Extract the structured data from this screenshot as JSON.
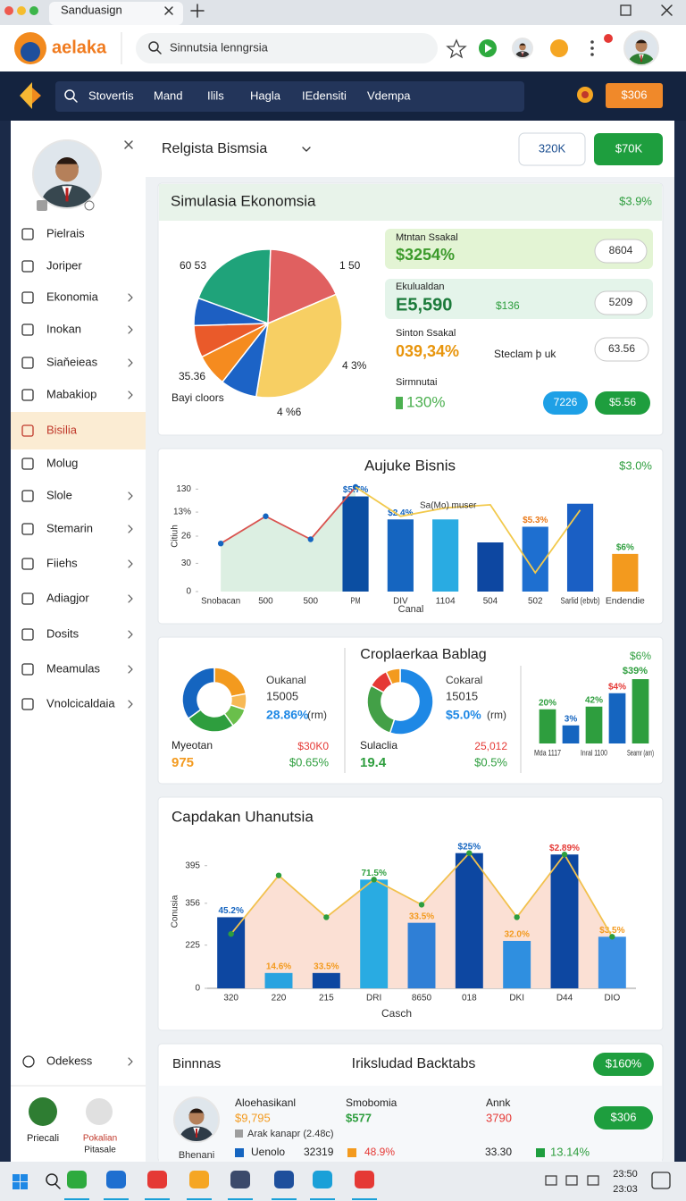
{
  "browser": {
    "tab": "Sanduasign",
    "logo": "aelaka",
    "search": "Sinnutsia lenngrsia"
  },
  "nav": {
    "items": [
      "Stovertis",
      "Mand",
      "Ilils",
      "Hagla",
      "IEdensiti",
      "Vdempa"
    ],
    "button": "$306"
  },
  "sidebar": {
    "items": [
      "Pielrais",
      "Joriper",
      "Ekonomia",
      "Inokan",
      "Siaňeieas",
      "Mabakiop",
      "Bisilia",
      "Molug",
      "Slole",
      "Stemarin",
      "Fiiehs",
      "Adiagjor",
      "Dosits",
      "Meamulas",
      "Vnolcicaldaia"
    ],
    "active": 6,
    "footer": "Odekess",
    "bottom": [
      "Priecali",
      "Pokalian",
      "Pitasale"
    ]
  },
  "header": {
    "title": "Relgista Bismsia",
    "buttons": [
      "320K",
      "$70K"
    ]
  },
  "card1": {
    "title": "Simulasia Ekonomsia",
    "badge": "$3.9%",
    "pie": {
      "type": "pie",
      "values": [
        20,
        18,
        34,
        8,
        7,
        7,
        6
      ],
      "colors": [
        "#1fa37a",
        "#e06060",
        "#f7cf63",
        "#1c63c6",
        "#f58b1f",
        "#ea5a2a",
        "#1d5fc2"
      ],
      "annotations": [
        "60 53",
        "1 50",
        "4 3%",
        "35.36",
        "Bayi cloors",
        "4 %6"
      ]
    },
    "stats": [
      {
        "label": "Mtntan Ssakal",
        "value": "$3254%",
        "chips": [
          "8604"
        ]
      },
      {
        "label": "Ekulualdan",
        "value": "E5,590",
        "extra": "$136",
        "chips": [
          "5209"
        ]
      },
      {
        "label": "Sinton Ssakal",
        "value": "039,34%",
        "extra": "Steclam þ uk",
        "chips": [
          "63.56"
        ]
      },
      {
        "label": "Sirmnutai",
        "value": "130%",
        "chips": [
          "7226",
          "$5.56"
        ]
      }
    ]
  },
  "card2": {
    "title": "Aujuke Bisnis",
    "badge": "$3.0%",
    "chart": {
      "type": "bar",
      "y_label": "Citiuh",
      "x_label": "Canal",
      "annotation": "Sa(Mo) muser",
      "categories": [
        "Snobacan",
        "500",
        "500",
        "PM",
        "DIV",
        "1104",
        "504",
        "502",
        "Sarlid (ebvb)",
        "Endendie"
      ],
      "ylim": [
        0,
        100
      ],
      "yticks": [
        {
          "value": 98,
          "label": "130"
        },
        {
          "value": 76,
          "label": "13%"
        },
        {
          "value": 53,
          "label": "26"
        },
        {
          "value": 27,
          "label": "30"
        },
        0
      ],
      "bars": {
        "values": [
          null,
          null,
          null,
          91,
          69,
          69,
          47,
          62,
          84,
          36
        ],
        "colors": [
          "#0d47a1",
          "#0d47a1",
          "#0d47a1",
          "#0b4ea2",
          "#1565c0",
          "#29abe2",
          "#0d47a1",
          "#1e6fd0",
          "#1a5fc4",
          "#f39a1e"
        ],
        "labels": [
          null,
          null,
          null,
          "$5.7%",
          "$2.4%",
          null,
          null,
          "$5.3%",
          null,
          "$6%"
        ],
        "label_colors": [
          "#1565c0",
          "#1565c0",
          "#1565c0",
          "#1565c0",
          "#1565c0",
          "#1565c0",
          "#1565c0",
          "#ea7a1a",
          "#1565c0",
          "#2e9e3e"
        ]
      },
      "lines": [
        {
          "values": [
            46,
            72,
            50,
            100,
            null,
            null,
            null,
            null,
            null,
            null
          ],
          "color": "#d9534f",
          "fill": "#dcefe2",
          "dots": true,
          "dot_color": "#1565c0"
        },
        {
          "values": [
            null,
            null,
            null,
            100,
            72,
            80,
            83,
            18,
            78,
            null
          ],
          "color": "#f2c94c"
        }
      ]
    }
  },
  "card3": {
    "title": "Croplaerkaa Bablag",
    "left": {
      "donut": {
        "type": "donut",
        "values": [
          22,
          8,
          10,
          25,
          35
        ],
        "colors": [
          "#f39a1e",
          "#f7b955",
          "#6abf4b",
          "#2e9e3e",
          "#1565c0"
        ]
      },
      "texts": [
        "Oukanal",
        "15005",
        "28.86%",
        "(rm)",
        "Myeotan",
        "975",
        "$30K0",
        "$0.65%"
      ]
    },
    "middle": {
      "donut": {
        "type": "donut",
        "values": [
          55,
          28,
          10,
          7
        ],
        "colors": [
          "#1e88e5",
          "#43a047",
          "#e53935",
          "#f39a1e"
        ]
      },
      "texts": [
        "Cokaral",
        "15015",
        "$5.0%",
        "(rm)",
        "Sulaclia",
        "19.4",
        "25,012",
        "$0.5%"
      ]
    },
    "badges": [
      "$6%",
      "$39%"
    ],
    "chart": {
      "type": "bar",
      "categories": [
        "Mda 1117",
        null,
        "Inral 1100",
        null,
        "Seamr (am)"
      ],
      "ylim": [
        0,
        100
      ],
      "bars": {
        "values": [
          51,
          27,
          55,
          75,
          96
        ],
        "colors": [
          "#2e9e3e",
          "#1565c0",
          "#2e9e3e",
          "#1565c0",
          "#2e9e3e"
        ],
        "labels": [
          "20%",
          "3%",
          "42%",
          "$4%",
          null
        ],
        "label_colors": [
          "#2e9e3e",
          "#1565c0",
          "#2e9e3e",
          "#e53935",
          "#2e9e3e"
        ]
      }
    }
  },
  "card4": {
    "title": "Capdakan Uhanutsia",
    "chart": {
      "type": "bar",
      "y_label": "Conusia",
      "x_label": "Casch",
      "categories": [
        "320",
        "220",
        "215",
        "DRI",
        "8650",
        "018",
        "DKI",
        "D44",
        "DIO"
      ],
      "ylim": [
        0,
        100
      ],
      "yticks": [
        {
          "value": 88,
          "label": "395"
        },
        {
          "value": 61,
          "label": "356"
        },
        {
          "value": 31,
          "label": "225"
        },
        0
      ],
      "bars": {
        "values": [
          51,
          11,
          11,
          78,
          47,
          97,
          34,
          96,
          37
        ],
        "colors": [
          "#0d47a1",
          "#29a3e0",
          "#0d47a1",
          "#29abe2",
          "#2f7fd6",
          "#0d47a1",
          "#2f8fe0",
          "#0d47a1",
          "#3a8fe3"
        ],
        "labels": [
          "45.2%",
          "14.6%",
          "33.5%",
          "71.5%",
          "33.5%",
          "$25%",
          "32.0%",
          "$2.89%",
          "$3.5%"
        ],
        "label_colors": [
          "#1565c0",
          "#f39a1e",
          "#f39a1e",
          "#2e9e3e",
          "#f39a1e",
          "#1565c0",
          "#f39a1e",
          "#e53935",
          "#f39a1e"
        ]
      },
      "lines": [
        {
          "values": [
            39,
            81,
            51,
            78,
            60,
            97,
            51,
            96,
            37
          ],
          "color": "#f2c14e",
          "fill": "#fbe0d4",
          "dots": true,
          "dot_color": "#2e9e3e"
        }
      ]
    }
  },
  "card5": {
    "title": "Binnnas",
    "subtitle": "Iriksludad Backtabs",
    "button": "$160%",
    "person": "Bhenani",
    "cols": [
      "Aloehasikanl",
      "$9,795",
      "Arak kanapr (2.48c)",
      "Smobomia",
      "$577",
      "Annk",
      "3790"
    ],
    "row_button": "$306",
    "legend": [
      "Uenolo",
      "32319",
      "48.9%",
      "33.30",
      "13.14%"
    ]
  },
  "taskbar": {
    "time": [
      "23:50",
      "23:03"
    ]
  }
}
